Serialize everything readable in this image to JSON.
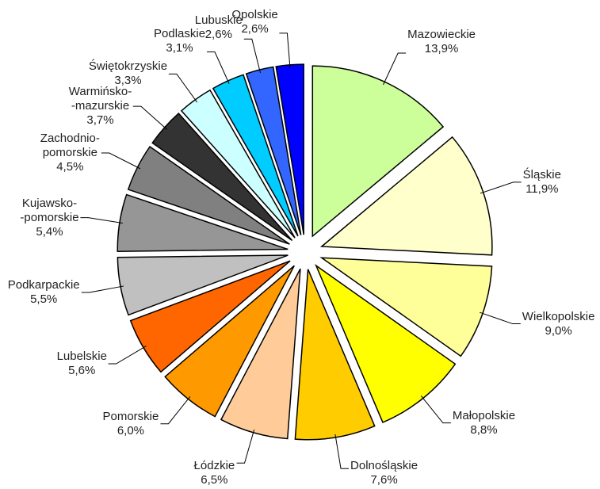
{
  "chart_data": {
    "type": "pie",
    "categories": [
      "Mazowieckie",
      "Śląskie",
      "Wielkopolskie",
      "Małopolskie",
      "Dolnośląskie",
      "Łódzkie",
      "Pomorskie",
      "Lubelskie",
      "Podkarpackie",
      "Kujawsko-\n-pomorskie",
      "Zachodnio-\npomorskie",
      "Warmińsko-\n-mazurskie",
      "Świętokrzyskie",
      "Podlaskie",
      "Lubuskie",
      "Opolskie"
    ],
    "values": [
      13.9,
      11.9,
      9.0,
      8.8,
      7.6,
      6.5,
      6.0,
      5.6,
      5.5,
      5.4,
      4.5,
      3.7,
      3.3,
      3.1,
      2.6,
      2.6
    ],
    "value_labels": [
      "13,9%",
      "11,9%",
      "9,0%",
      "8,8%",
      "7,6%",
      "6,5%",
      "6,0%",
      "5,6%",
      "5,5%",
      "5,4%",
      "4,5%",
      "3,7%",
      "3,3%",
      "3,1%",
      "2,6%",
      "2,6%"
    ],
    "colors": [
      "#ccff99",
      "#ffffcc",
      "#ffff99",
      "#ffff00",
      "#ffcc00",
      "#ffcc99",
      "#ff9900",
      "#ff6600",
      "#c0c0c0",
      "#969696",
      "#808080",
      "#333333",
      "#ccffff",
      "#00ccff",
      "#3366ff",
      "#0000ff"
    ]
  }
}
